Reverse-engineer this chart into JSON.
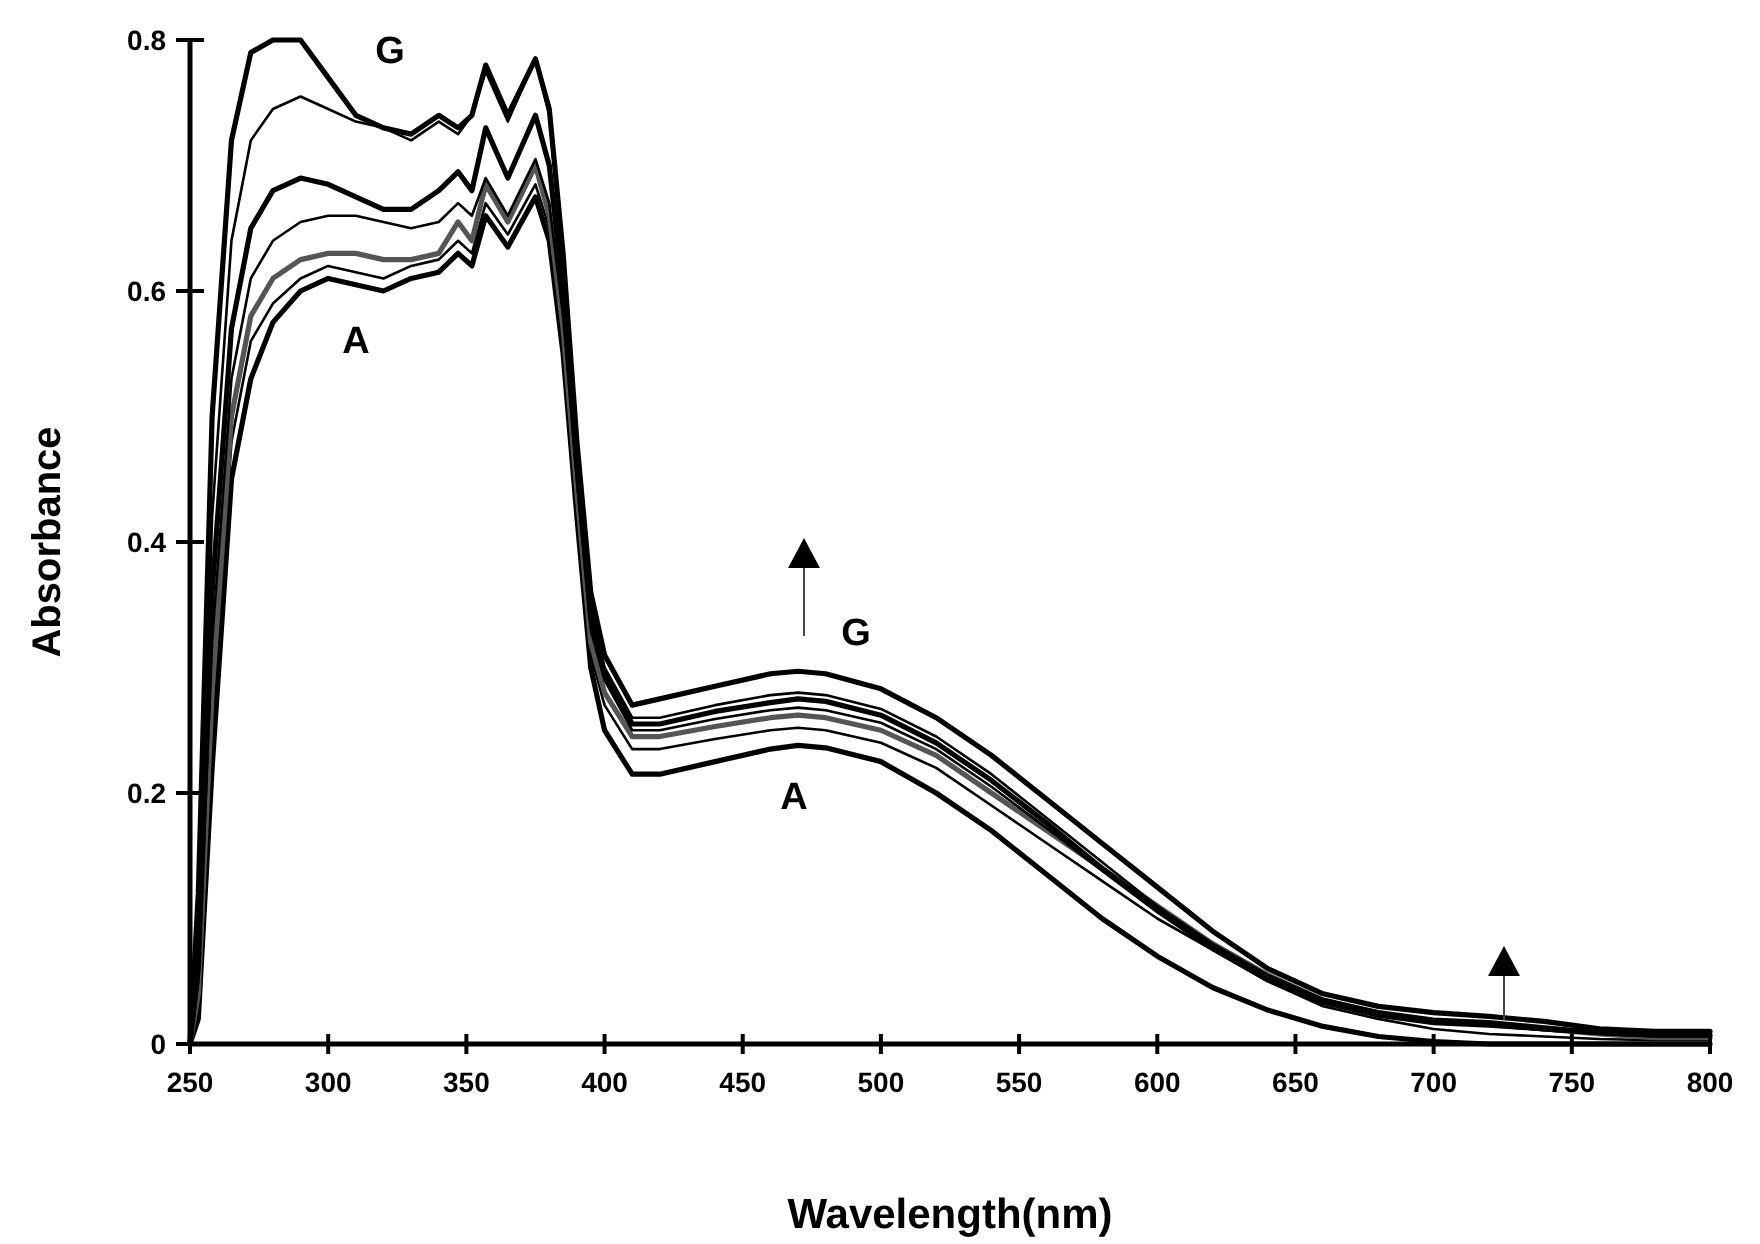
{
  "chart_data": {
    "type": "line",
    "xlabel": "Wavelength(nm)",
    "ylabel": "Absorbance",
    "x": [
      250,
      253,
      258,
      265,
      272,
      280,
      290,
      300,
      310,
      320,
      330,
      340,
      347,
      352,
      357,
      365,
      375,
      380,
      385,
      390,
      395,
      400,
      410,
      420,
      440,
      460,
      470,
      480,
      500,
      520,
      540,
      560,
      580,
      600,
      620,
      640,
      660,
      680,
      700,
      720,
      740,
      760,
      780,
      800
    ],
    "series": [
      {
        "color": "#000000",
        "values": [
          0,
          0.02,
          0.22,
          0.45,
          0.53,
          0.575,
          0.6,
          0.61,
          0.605,
          0.6,
          0.61,
          0.615,
          0.63,
          0.62,
          0.66,
          0.635,
          0.675,
          0.64,
          0.55,
          0.42,
          0.3,
          0.25,
          0.215,
          0.215,
          0.225,
          0.235,
          0.238,
          0.236,
          0.225,
          0.2,
          0.17,
          0.135,
          0.1,
          0.07,
          0.045,
          0.027,
          0.014,
          0.006,
          0.002,
          0,
          0,
          0,
          0,
          0
        ]
      },
      {
        "color": "#000000",
        "values": [
          0,
          0.03,
          0.25,
          0.48,
          0.56,
          0.59,
          0.61,
          0.62,
          0.615,
          0.61,
          0.62,
          0.625,
          0.64,
          0.63,
          0.67,
          0.645,
          0.685,
          0.65,
          0.56,
          0.43,
          0.31,
          0.27,
          0.235,
          0.235,
          0.243,
          0.25,
          0.252,
          0.25,
          0.24,
          0.22,
          0.19,
          0.16,
          0.13,
          0.1,
          0.075,
          0.05,
          0.03,
          0.02,
          0.012,
          0.008,
          0.006,
          0.004,
          0.003,
          0.003
        ]
      },
      {
        "color": "#555555",
        "values": [
          0,
          0.04,
          0.28,
          0.5,
          0.58,
          0.61,
          0.625,
          0.63,
          0.63,
          0.625,
          0.625,
          0.63,
          0.655,
          0.64,
          0.685,
          0.655,
          0.7,
          0.66,
          0.57,
          0.44,
          0.32,
          0.28,
          0.245,
          0.245,
          0.253,
          0.26,
          0.262,
          0.26,
          0.25,
          0.23,
          0.2,
          0.17,
          0.14,
          0.11,
          0.08,
          0.055,
          0.035,
          0.024,
          0.018,
          0.016,
          0.012,
          0.008,
          0.005,
          0.005
        ]
      },
      {
        "color": "#000000",
        "values": [
          0,
          0.05,
          0.32,
          0.53,
          0.61,
          0.64,
          0.655,
          0.66,
          0.66,
          0.655,
          0.65,
          0.655,
          0.67,
          0.66,
          0.69,
          0.66,
          0.705,
          0.67,
          0.58,
          0.45,
          0.33,
          0.29,
          0.25,
          0.25,
          0.259,
          0.266,
          0.268,
          0.266,
          0.256,
          0.235,
          0.205,
          0.172,
          0.138,
          0.105,
          0.075,
          0.05,
          0.032,
          0.022,
          0.016,
          0.014,
          0.011,
          0.008,
          0.006,
          0.006
        ]
      },
      {
        "color": "#000000",
        "values": [
          0,
          0.06,
          0.36,
          0.57,
          0.65,
          0.68,
          0.69,
          0.685,
          0.675,
          0.665,
          0.665,
          0.68,
          0.695,
          0.68,
          0.73,
          0.69,
          0.74,
          0.7,
          0.6,
          0.46,
          0.34,
          0.295,
          0.255,
          0.255,
          0.265,
          0.272,
          0.275,
          0.273,
          0.262,
          0.24,
          0.21,
          0.176,
          0.14,
          0.107,
          0.078,
          0.052,
          0.034,
          0.024,
          0.018,
          0.016,
          0.012,
          0.009,
          0.007,
          0.007
        ]
      },
      {
        "color": "#000000",
        "values": [
          0,
          0.08,
          0.42,
          0.64,
          0.72,
          0.745,
          0.755,
          0.745,
          0.735,
          0.73,
          0.72,
          0.735,
          0.725,
          0.74,
          0.775,
          0.735,
          0.785,
          0.74,
          0.62,
          0.47,
          0.35,
          0.3,
          0.26,
          0.26,
          0.27,
          0.278,
          0.28,
          0.278,
          0.267,
          0.245,
          0.215,
          0.18,
          0.145,
          0.11,
          0.08,
          0.055,
          0.036,
          0.026,
          0.02,
          0.018,
          0.014,
          0.01,
          0.008,
          0.008
        ]
      },
      {
        "color": "#000000",
        "values": [
          0,
          0.12,
          0.5,
          0.72,
          0.79,
          0.8,
          0.8,
          0.77,
          0.74,
          0.73,
          0.725,
          0.74,
          0.73,
          0.74,
          0.78,
          0.74,
          0.785,
          0.745,
          0.63,
          0.48,
          0.36,
          0.31,
          0.27,
          0.275,
          0.285,
          0.295,
          0.297,
          0.295,
          0.283,
          0.26,
          0.23,
          0.195,
          0.16,
          0.125,
          0.09,
          0.06,
          0.04,
          0.03,
          0.025,
          0.022,
          0.018,
          0.012,
          0.01,
          0.01
        ]
      }
    ],
    "xlim": [
      250,
      800
    ],
    "xticks": [
      250,
      300,
      350,
      400,
      450,
      500,
      550,
      600,
      650,
      700,
      750,
      800
    ],
    "ylim": [
      0,
      0.8
    ],
    "yticks": [
      0,
      0.2,
      0.4,
      0.6,
      0.8
    ],
    "annotations": [
      "G",
      "A",
      "G",
      "A"
    ],
    "grid": false,
    "marker": "none",
    "line_style": "solid"
  }
}
